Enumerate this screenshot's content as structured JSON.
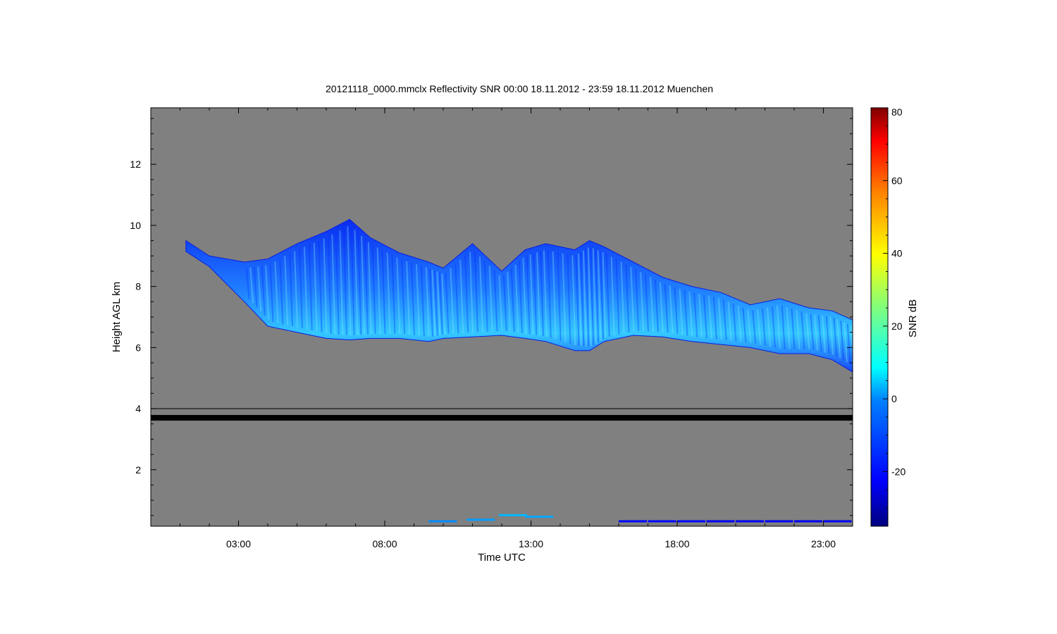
{
  "chart_data": {
    "type": "heatmap",
    "title": "20121118_0000.mmclx Reflectivity SNR   00:00 18.11.2012 - 23:59 18.11.2012 Muenchen",
    "xlabel": "Time UTC",
    "ylabel": "Height AGL km",
    "x_ticks": [
      "03:00",
      "08:00",
      "13:00",
      "18:00",
      "23:00"
    ],
    "x_tick_hours": [
      3,
      8,
      13,
      18,
      23
    ],
    "xlim_hours": [
      0,
      24
    ],
    "y_ticks": [
      "2",
      "4",
      "6",
      "8",
      "10",
      "12"
    ],
    "y_tick_values": [
      2,
      4,
      6,
      8,
      10,
      12
    ],
    "ylim_km": [
      0.15,
      13.85
    ],
    "background_color": "#808080",
    "colorbar": {
      "label": "SNR dB",
      "ticks": [
        "-20",
        "0",
        "20",
        "40",
        "60",
        "80"
      ],
      "tick_values": [
        -20,
        0,
        20,
        40,
        60,
        80
      ],
      "range": [
        -35,
        80
      ],
      "colormap": "jet"
    },
    "cloud_layer": {
      "description_series": "cloud top and base (km) vs time (hours UTC)",
      "time_hours": [
        1.2,
        2.0,
        3.2,
        4.0,
        5.0,
        6.0,
        6.8,
        7.5,
        8.5,
        9.5,
        10.0,
        11.0,
        12.0,
        12.8,
        13.5,
        14.5,
        15.0,
        15.5,
        16.5,
        17.5,
        18.5,
        19.5,
        20.5,
        21.5,
        22.5,
        23.3,
        24.0
      ],
      "top_km": [
        9.5,
        9.0,
        8.8,
        8.9,
        9.4,
        9.8,
        10.2,
        9.6,
        9.1,
        8.8,
        8.6,
        9.4,
        8.5,
        9.2,
        9.4,
        9.2,
        9.5,
        9.3,
        8.8,
        8.3,
        8.0,
        7.8,
        7.4,
        7.6,
        7.3,
        7.2,
        6.9
      ],
      "base_km": [
        null,
        null,
        7.5,
        6.7,
        6.5,
        6.3,
        6.25,
        6.3,
        6.3,
        6.2,
        6.3,
        6.35,
        6.4,
        6.3,
        6.2,
        5.9,
        5.9,
        6.2,
        6.4,
        6.35,
        6.2,
        6.1,
        6.0,
        5.8,
        5.8,
        5.6,
        5.2
      ],
      "peak_snr_db": 5
    },
    "noise_line": {
      "height_km": 3.7,
      "color": "#000000"
    },
    "reference_line": {
      "height_km": 4.0
    },
    "surface_clutter": {
      "time_hours": [
        9.5,
        10.8,
        11.9,
        12.8,
        16.0,
        17.0,
        18.0,
        19.0,
        20.0,
        21.0,
        22.0,
        23.0
      ],
      "height_km": [
        0.3,
        0.35,
        0.5,
        0.45,
        0.3,
        0.3,
        0.3,
        0.3,
        0.3,
        0.3,
        0.3,
        0.3
      ],
      "snr_db": [
        -5,
        -3,
        0,
        -2,
        -20,
        -20,
        -20,
        -22,
        -22,
        -22,
        -22,
        -22
      ]
    }
  }
}
